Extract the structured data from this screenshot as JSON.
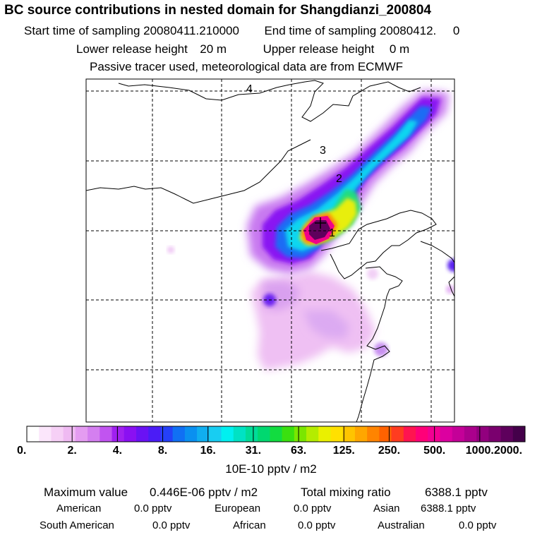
{
  "title": "BC  source contributions in nested domain for Shangdianzi_200804",
  "sampling": {
    "start_label": "Start time of sampling",
    "start_value": "20080411.210000",
    "end_label": "End time of sampling",
    "end_value": "20080412.     0"
  },
  "release": {
    "lower_label": "Lower release height",
    "lower_value": "20 m",
    "upper_label": "Upper release height",
    "upper_value": "0 m"
  },
  "tracer_note": "Passive tracer used, meteorological data are from ECMWF",
  "map": {
    "markers": [
      "1",
      "2",
      "3",
      "4"
    ]
  },
  "colorbar": {
    "tick_labels": [
      "0.",
      "2.",
      "4.",
      "8.",
      "16.",
      "31.",
      "63.",
      "125.",
      "250.",
      "500.",
      "1000.",
      "2000."
    ],
    "unit": "10E-10 pptv / m2",
    "colors": [
      "#ffffff",
      "#fbe6fb",
      "#f6d0f6",
      "#efbaf2",
      "#e49cf1",
      "#d47ff0",
      "#c154f0",
      "#a020f0",
      "#8a10f2",
      "#6a12f4",
      "#4b1cf6",
      "#2540f8",
      "#1070f4",
      "#0a90f0",
      "#10aef0",
      "#18cdf2",
      "#00f0f0",
      "#00e2c4",
      "#00dc98",
      "#00d870",
      "#12dc40",
      "#3ae010",
      "#7ae600",
      "#b4ec00",
      "#eaf000",
      "#ffe000",
      "#ffc400",
      "#ffa600",
      "#ff8400",
      "#ff6200",
      "#ff3c20",
      "#ff1450",
      "#ff0078",
      "#f20092",
      "#dc00a0",
      "#c40098",
      "#ab008c",
      "#92007e",
      "#7a006e",
      "#5e005c",
      "#44004a"
    ]
  },
  "stats": {
    "max_label": "Maximum value",
    "max_value": "0.446E-06 pptv / m2",
    "total_label": "Total mixing ratio",
    "total_value": "6388.1 pptv"
  },
  "regions": [
    {
      "name": "American",
      "value": "0.0 pptv"
    },
    {
      "name": "European",
      "value": "0.0 pptv"
    },
    {
      "name": "Asian",
      "value": "6388.1 pptv"
    },
    {
      "name": "South American",
      "value": "0.0 pptv"
    },
    {
      "name": "African",
      "value": "0.0 pptv"
    },
    {
      "name": "Australian",
      "value": "0.0 pptv"
    }
  ]
}
